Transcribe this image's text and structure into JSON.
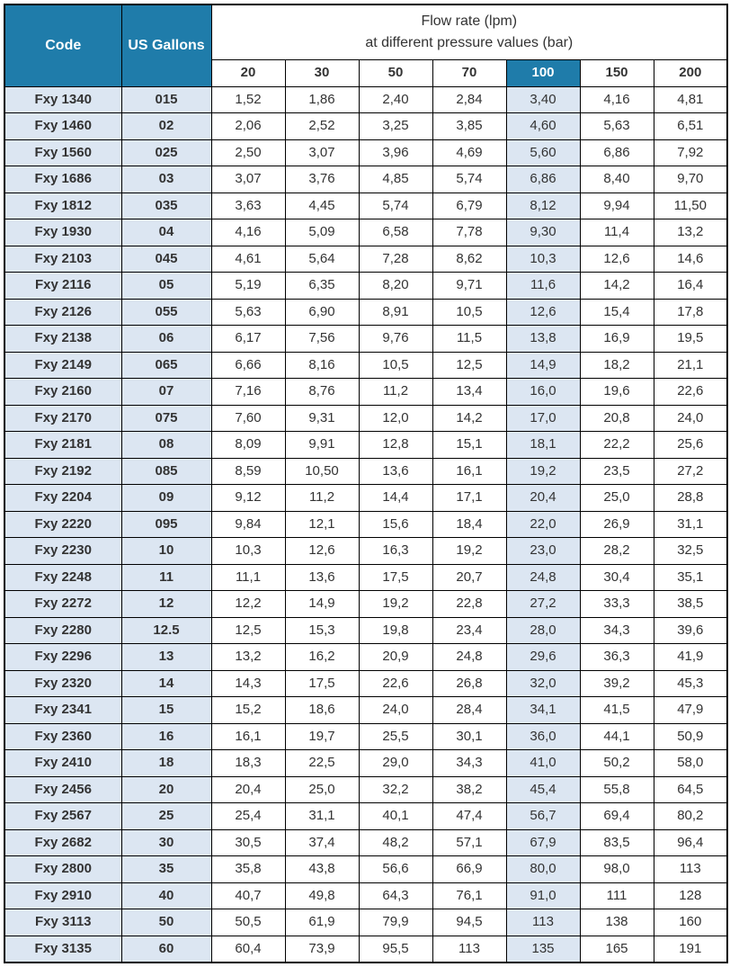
{
  "header": {
    "code_label": "Code",
    "gallons_label": "US Gallons",
    "flow_title_line1": "Flow rate (lpm)",
    "flow_title_line2": "at different pressure values (bar)"
  },
  "pressures": [
    "20",
    "30",
    "50",
    "70",
    "100",
    "150",
    "200"
  ],
  "highlight_col_index": 4,
  "colors": {
    "header_bg": "#1f7caa",
    "header_fg": "#ffffff",
    "alt_bg": "#dce6f2",
    "border": "#000000",
    "text": "#333333"
  },
  "rows": [
    {
      "code": "Fxy 1340",
      "gal": "015",
      "v": [
        "1,52",
        "1,86",
        "2,40",
        "2,84",
        "3,40",
        "4,16",
        "4,81"
      ]
    },
    {
      "code": "Fxy 1460",
      "gal": "02",
      "v": [
        "2,06",
        "2,52",
        "3,25",
        "3,85",
        "4,60",
        "5,63",
        "6,51"
      ]
    },
    {
      "code": "Fxy 1560",
      "gal": "025",
      "v": [
        "2,50",
        "3,07",
        "3,96",
        "4,69",
        "5,60",
        "6,86",
        "7,92"
      ]
    },
    {
      "code": "Fxy 1686",
      "gal": "03",
      "v": [
        "3,07",
        "3,76",
        "4,85",
        "5,74",
        "6,86",
        "8,40",
        "9,70"
      ]
    },
    {
      "code": "Fxy 1812",
      "gal": "035",
      "v": [
        "3,63",
        "4,45",
        "5,74",
        "6,79",
        "8,12",
        "9,94",
        "11,50"
      ]
    },
    {
      "code": "Fxy 1930",
      "gal": "04",
      "v": [
        "4,16",
        "5,09",
        "6,58",
        "7,78",
        "9,30",
        "11,4",
        "13,2"
      ]
    },
    {
      "code": "Fxy 2103",
      "gal": "045",
      "v": [
        "4,61",
        "5,64",
        "7,28",
        "8,62",
        "10,3",
        "12,6",
        "14,6"
      ]
    },
    {
      "code": "Fxy 2116",
      "gal": "05",
      "v": [
        "5,19",
        "6,35",
        "8,20",
        "9,71",
        "11,6",
        "14,2",
        "16,4"
      ]
    },
    {
      "code": "Fxy 2126",
      "gal": "055",
      "v": [
        "5,63",
        "6,90",
        "8,91",
        "10,5",
        "12,6",
        "15,4",
        "17,8"
      ]
    },
    {
      "code": "Fxy 2138",
      "gal": "06",
      "v": [
        "6,17",
        "7,56",
        "9,76",
        "11,5",
        "13,8",
        "16,9",
        "19,5"
      ]
    },
    {
      "code": "Fxy 2149",
      "gal": "065",
      "v": [
        "6,66",
        "8,16",
        "10,5",
        "12,5",
        "14,9",
        "18,2",
        "21,1"
      ]
    },
    {
      "code": "Fxy 2160",
      "gal": "07",
      "v": [
        "7,16",
        "8,76",
        "11,2",
        "13,4",
        "16,0",
        "19,6",
        "22,6"
      ]
    },
    {
      "code": "Fxy 2170",
      "gal": "075",
      "v": [
        "7,60",
        "9,31",
        "12,0",
        "14,2",
        "17,0",
        "20,8",
        "24,0"
      ]
    },
    {
      "code": "Fxy 2181",
      "gal": "08",
      "v": [
        "8,09",
        "9,91",
        "12,8",
        "15,1",
        "18,1",
        "22,2",
        "25,6"
      ]
    },
    {
      "code": "Fxy 2192",
      "gal": "085",
      "v": [
        "8,59",
        "10,50",
        "13,6",
        "16,1",
        "19,2",
        "23,5",
        "27,2"
      ]
    },
    {
      "code": "Fxy 2204",
      "gal": "09",
      "v": [
        "9,12",
        "11,2",
        "14,4",
        "17,1",
        "20,4",
        "25,0",
        "28,8"
      ]
    },
    {
      "code": "Fxy 2220",
      "gal": "095",
      "v": [
        "9,84",
        "12,1",
        "15,6",
        "18,4",
        "22,0",
        "26,9",
        "31,1"
      ]
    },
    {
      "code": "Fxy 2230",
      "gal": "10",
      "v": [
        "10,3",
        "12,6",
        "16,3",
        "19,2",
        "23,0",
        "28,2",
        "32,5"
      ]
    },
    {
      "code": "Fxy 2248",
      "gal": "11",
      "v": [
        "11,1",
        "13,6",
        "17,5",
        "20,7",
        "24,8",
        "30,4",
        "35,1"
      ]
    },
    {
      "code": "Fxy 2272",
      "gal": "12",
      "v": [
        "12,2",
        "14,9",
        "19,2",
        "22,8",
        "27,2",
        "33,3",
        "38,5"
      ]
    },
    {
      "code": "Fxy 2280",
      "gal": "12.5",
      "v": [
        "12,5",
        "15,3",
        "19,8",
        "23,4",
        "28,0",
        "34,3",
        "39,6"
      ]
    },
    {
      "code": "Fxy 2296",
      "gal": "13",
      "v": [
        "13,2",
        "16,2",
        "20,9",
        "24,8",
        "29,6",
        "36,3",
        "41,9"
      ]
    },
    {
      "code": "Fxy 2320",
      "gal": "14",
      "v": [
        "14,3",
        "17,5",
        "22,6",
        "26,8",
        "32,0",
        "39,2",
        "45,3"
      ]
    },
    {
      "code": "Fxy 2341",
      "gal": "15",
      "v": [
        "15,2",
        "18,6",
        "24,0",
        "28,4",
        "34,1",
        "41,5",
        "47,9"
      ]
    },
    {
      "code": "Fxy 2360",
      "gal": "16",
      "v": [
        "16,1",
        "19,7",
        "25,5",
        "30,1",
        "36,0",
        "44,1",
        "50,9"
      ]
    },
    {
      "code": "Fxy 2410",
      "gal": "18",
      "v": [
        "18,3",
        "22,5",
        "29,0",
        "34,3",
        "41,0",
        "50,2",
        "58,0"
      ]
    },
    {
      "code": "Fxy 2456",
      "gal": "20",
      "v": [
        "20,4",
        "25,0",
        "32,2",
        "38,2",
        "45,4",
        "55,8",
        "64,5"
      ]
    },
    {
      "code": "Fxy 2567",
      "gal": "25",
      "v": [
        "25,4",
        "31,1",
        "40,1",
        "47,4",
        "56,7",
        "69,4",
        "80,2"
      ]
    },
    {
      "code": "Fxy 2682",
      "gal": "30",
      "v": [
        "30,5",
        "37,4",
        "48,2",
        "57,1",
        "67,9",
        "83,5",
        "96,4"
      ]
    },
    {
      "code": "Fxy 2800",
      "gal": "35",
      "v": [
        "35,8",
        "43,8",
        "56,6",
        "66,9",
        "80,0",
        "98,0",
        "113"
      ]
    },
    {
      "code": "Fxy 2910",
      "gal": "40",
      "v": [
        "40,7",
        "49,8",
        "64,3",
        "76,1",
        "91,0",
        "111",
        "128"
      ]
    },
    {
      "code": "Fxy 3113",
      "gal": "50",
      "v": [
        "50,5",
        "61,9",
        "79,9",
        "94,5",
        "113",
        "138",
        "160"
      ]
    },
    {
      "code": "Fxy 3135",
      "gal": "60",
      "v": [
        "60,4",
        "73,9",
        "95,5",
        "113",
        "135",
        "165",
        "191"
      ]
    }
  ]
}
